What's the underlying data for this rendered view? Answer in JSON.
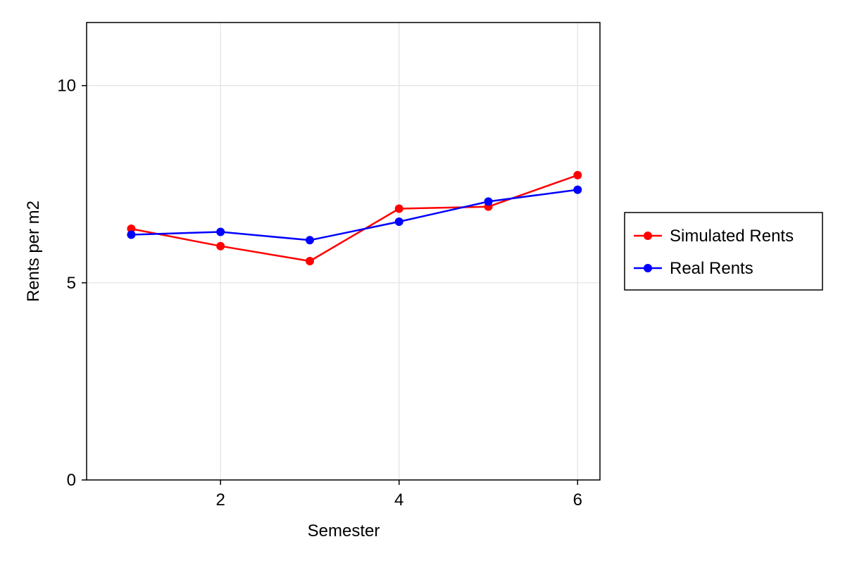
{
  "chart_data": {
    "type": "line",
    "title": "",
    "xlabel": "Semester",
    "ylabel": "Rents per m2",
    "x": [
      1,
      2,
      3,
      4,
      5,
      6
    ],
    "xlim": [
      0.5,
      6.25
    ],
    "ylim": [
      0,
      11.6
    ],
    "xticks": [
      2,
      4,
      6
    ],
    "yticks": [
      0,
      5,
      10
    ],
    "grid": true,
    "legend_position": "right",
    "series": [
      {
        "name": "Simulated Rents",
        "color": "#ff0000",
        "values": [
          6.37,
          5.93,
          5.55,
          6.88,
          6.93,
          7.73
        ]
      },
      {
        "name": "Real Rents",
        "color": "#0000ff",
        "values": [
          6.22,
          6.29,
          6.08,
          6.55,
          7.06,
          7.36
        ]
      }
    ]
  }
}
